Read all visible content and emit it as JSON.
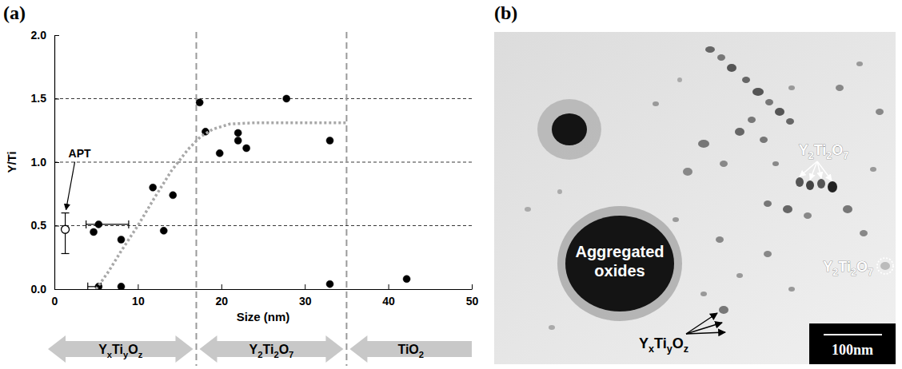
{
  "chart_data": {
    "type": "scatter",
    "panel_label": "(a)",
    "x_label": "Size (nm)",
    "y_label": "Y/Ti",
    "xlim": [
      0,
      50
    ],
    "xticks": [
      0,
      10,
      20,
      30,
      40,
      50
    ],
    "ylim": [
      0,
      2
    ],
    "yticks": [
      {
        "value": 0,
        "label": "0.0"
      },
      {
        "value": 0.5,
        "label": "0.5"
      },
      {
        "value": 1,
        "label": "1.0"
      },
      {
        "value": 1.5,
        "label": "1.5"
      },
      {
        "value": 2,
        "label": "2.0"
      }
    ],
    "grid": true,
    "series": [
      {
        "type": "scatter",
        "marker": "filled",
        "color": "#000000",
        "x": [
          4.7,
          5.3,
          5.3,
          8.0,
          8.0,
          11.8,
          13.1,
          14.2,
          17.4,
          18.1,
          19.8,
          22.0,
          22.0,
          23.0,
          27.8,
          33.0,
          33.0,
          42.2
        ],
        "values": [
          0.45,
          0.51,
          0.02,
          0.39,
          0.02,
          0.8,
          0.46,
          0.74,
          1.47,
          1.24,
          1.07,
          1.17,
          1.23,
          1.11,
          1.5,
          1.17,
          0.04,
          0.08
        ],
        "x_errors": [
          null,
          [
            1.5,
            3.6
          ],
          [
            1.3,
            0.3
          ],
          null,
          null,
          null,
          null,
          null,
          null,
          null,
          null,
          null,
          null,
          null,
          null,
          null,
          null,
          null
        ]
      },
      {
        "type": "scatter",
        "marker": "open",
        "color": "#000000",
        "x": [
          1.3
        ],
        "values": [
          0.47
        ],
        "y_errors": [
          [
            0.19,
            0.13
          ]
        ]
      },
      {
        "type": "line",
        "line_style": "dotted",
        "color": "#a8a8a8",
        "x": [
          5,
          6.5,
          8,
          10,
          12,
          14,
          16,
          17.5,
          19,
          21,
          24,
          28,
          35
        ],
        "values": [
          0,
          0.14,
          0.3,
          0.5,
          0.72,
          0.93,
          1.1,
          1.2,
          1.26,
          1.3,
          1.31,
          1.31,
          1.31
        ]
      }
    ],
    "annotations": [
      "APT"
    ],
    "regions": [
      {
        "label": "YxTiyOz",
        "from": 0,
        "to": 17
      },
      {
        "label": "Y2Ti2O7",
        "from": 17,
        "to": 35
      },
      {
        "label": "TiO2",
        "from": 35,
        "to": 50
      }
    ]
  },
  "image": {
    "panel_label": "(b)",
    "labels": [
      "Aggregated oxides",
      "Y2Ti2O7",
      "Y2Ti2O7",
      "YxTiyOz"
    ],
    "scale_bar": "100nm"
  }
}
